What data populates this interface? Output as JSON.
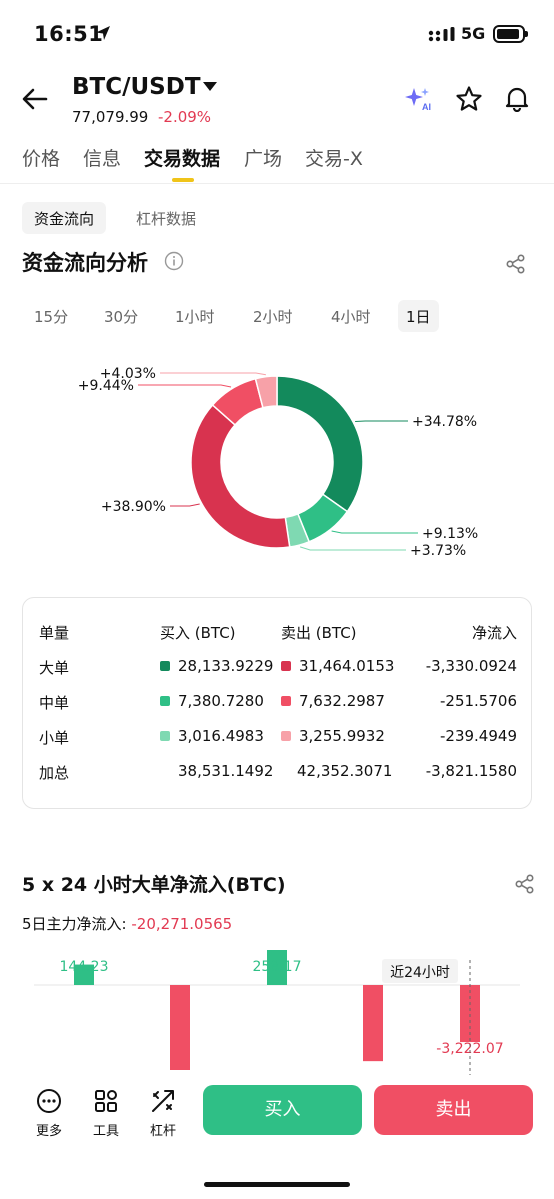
{
  "status": {
    "time": "16:51",
    "network": "5G"
  },
  "header": {
    "pair": "BTC/USDT",
    "price": "77,079.99",
    "change": "-2.09%"
  },
  "tabs": [
    "价格",
    "信息",
    "交易数据",
    "广场",
    "交易-X"
  ],
  "subtabs": [
    "资金流向",
    "杠杆数据"
  ],
  "section1": {
    "title": "资金流向分析"
  },
  "periods": [
    "15分",
    "30分",
    "1小时",
    "2小时",
    "4小时",
    "1日"
  ],
  "donut": {
    "slices": [
      {
        "label": "+34.78%",
        "value": 34.78,
        "color": "#138a5c"
      },
      {
        "label": "+9.13%",
        "value": 9.13,
        "color": "#2fbf86"
      },
      {
        "label": "+3.73%",
        "value": 3.73,
        "color": "#7fd9b2"
      },
      {
        "label": "+38.90%",
        "value": 38.9,
        "color": "#d8334f"
      },
      {
        "label": "+9.44%",
        "value": 9.44,
        "color": "#f04f64"
      },
      {
        "label": "+4.03%",
        "value": 4.03,
        "color": "#f7a1a8"
      }
    ]
  },
  "table": {
    "headers": [
      "单量",
      "买入 (BTC)",
      "卖出 (BTC)",
      "净流入"
    ],
    "rows": [
      {
        "name": "大单",
        "buy": "28,133.9229",
        "sell": "31,464.0153",
        "net": "-3,330.0924",
        "buy_color": "#138a5c",
        "sell_color": "#d8334f"
      },
      {
        "name": "中单",
        "buy": "7,380.7280",
        "sell": "7,632.2987",
        "net": "-251.5706",
        "buy_color": "#2fbf86",
        "sell_color": "#f04f64"
      },
      {
        "name": "小单",
        "buy": "3,016.4983",
        "sell": "3,255.9932",
        "net": "-239.4949",
        "buy_color": "#7fd9b2",
        "sell_color": "#f7a1a8"
      },
      {
        "name": "加总",
        "buy": "38,531.1492",
        "sell": "42,352.3071",
        "net": "-3,821.1580"
      }
    ]
  },
  "section2": {
    "title": "5 x 24 小时大单净流入(BTC)",
    "summary_label": "5日主力净流入:",
    "summary_value": "-20,271.0565",
    "bars": [
      {
        "value": 144.23,
        "label": "144.23"
      },
      {
        "value": -4800,
        "label": ""
      },
      {
        "value": 258.17,
        "label": "258.17"
      },
      {
        "value": -4300,
        "label": ""
      },
      {
        "value": -3222.07,
        "label": "-3,222.07"
      }
    ],
    "last24_label": "近24小时"
  },
  "bottom": {
    "tools": [
      "更多",
      "工具",
      "杠杆"
    ],
    "buy": "买入",
    "sell": "卖出"
  },
  "colors": {
    "green": "#2fbf86",
    "red": "#f04f64",
    "accent": "#f0c419"
  }
}
